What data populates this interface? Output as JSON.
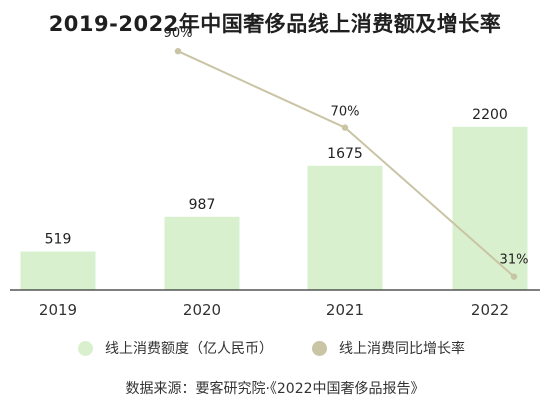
{
  "chart_data": {
    "type": "bar",
    "title": "2019-2022年中国奢侈品线上消费额及增长率",
    "categories": [
      "2019",
      "2020",
      "2021",
      "2022"
    ],
    "series": [
      {
        "name": "线上消费额度（亿人民币）",
        "type": "bar",
        "values": [
          519,
          987,
          1675,
          2200
        ],
        "value_labels": [
          "519",
          "987",
          "1675",
          "2200"
        ],
        "color": "#d9f0cf"
      },
      {
        "name": "线上消费同比增长率",
        "type": "line",
        "x": [
          "2020",
          "2021",
          "2022"
        ],
        "values": [
          90,
          70,
          31
        ],
        "value_labels": [
          "90%",
          "70%",
          "31%"
        ],
        "unit": "%",
        "color": "#c9c4a4"
      }
    ],
    "ylim": [
      0,
      2400
    ],
    "y2lim": [
      0,
      100
    ],
    "grid": false,
    "legend_position": "bottom"
  },
  "source_text": "数据来源：要客研究院·《2022中国奢侈品报告》",
  "colors": {
    "bar": "#d9f0cf",
    "line": "#c9c4a4",
    "axis": "#333333",
    "text": "#222222"
  }
}
